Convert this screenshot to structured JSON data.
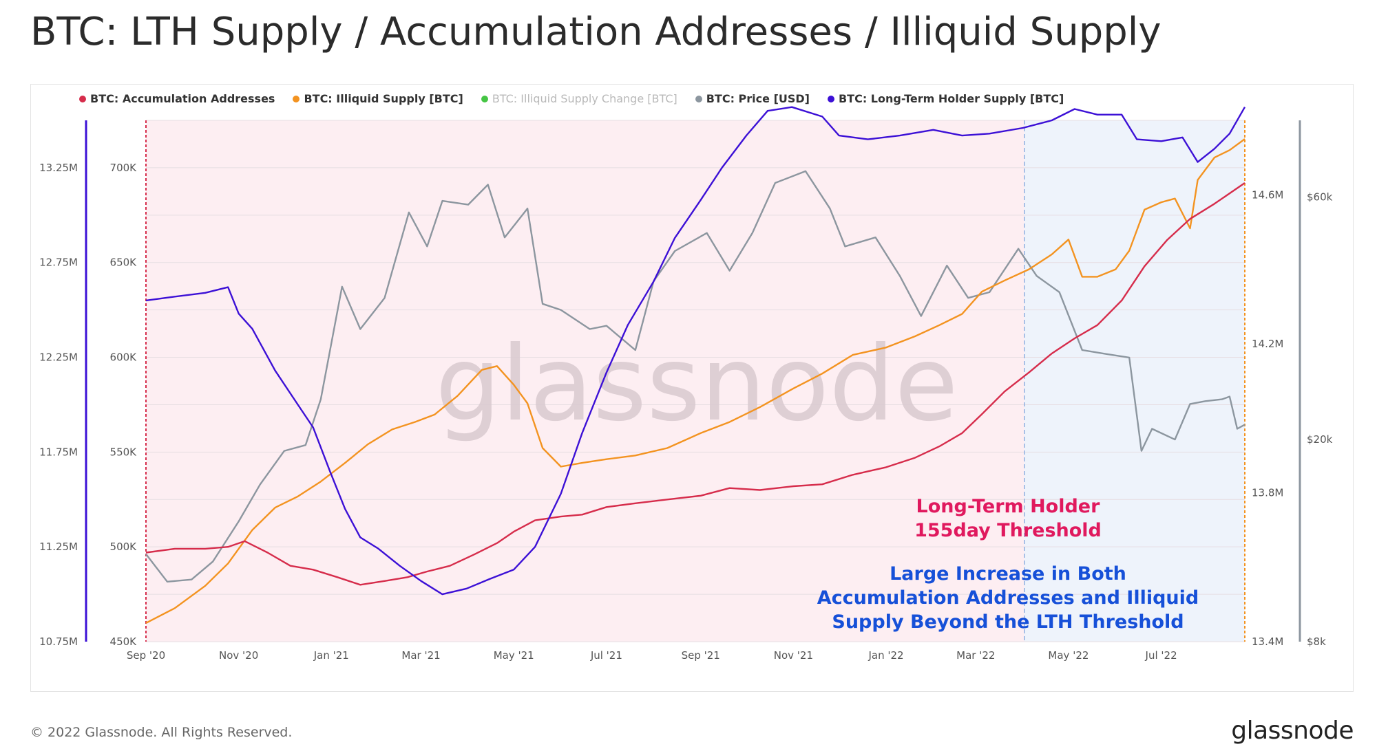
{
  "header": {
    "title": "BTC: LTH Supply / Accumulation Addresses / Illiquid Supply"
  },
  "legend": [
    {
      "label": "BTC: Accumulation Addresses",
      "color": "#d62c4b",
      "muted": false
    },
    {
      "label": "BTC: Illiquid Supply [BTC]",
      "color": "#f39320",
      "muted": false
    },
    {
      "label": "BTC: Illiquid Supply Change [BTC]",
      "color": "#45c544",
      "muted": true
    },
    {
      "label": "BTC: Price [USD]",
      "color": "#8c969f",
      "muted": false
    },
    {
      "label": "BTC: Long-Term Holder Supply [BTC]",
      "color": "#3c10d6",
      "muted": false
    }
  ],
  "footer": {
    "copyright": "© 2022 Glassnode. All Rights Reserved.",
    "logo": "glassnode"
  },
  "watermark": "glassnode",
  "chart_data": {
    "type": "line",
    "x_range": [
      "2020-09-01",
      "2022-08-25"
    ],
    "x_ticks": [
      {
        "date": "2020-09-01",
        "label": "Sep '20"
      },
      {
        "date": "2020-11-01",
        "label": "Nov '20"
      },
      {
        "date": "2021-01-01",
        "label": "Jan '21"
      },
      {
        "date": "2021-03-01",
        "label": "Mar '21"
      },
      {
        "date": "2021-05-01",
        "label": "May '21"
      },
      {
        "date": "2021-07-01",
        "label": "Jul '21"
      },
      {
        "date": "2021-09-01",
        "label": "Sep '21"
      },
      {
        "date": "2021-11-01",
        "label": "Nov '21"
      },
      {
        "date": "2022-01-01",
        "label": "Jan '22"
      },
      {
        "date": "2022-03-01",
        "label": "Mar '22"
      },
      {
        "date": "2022-05-01",
        "label": "May '22"
      },
      {
        "date": "2022-07-01",
        "label": "Jul '22"
      }
    ],
    "axes": {
      "lth": {
        "ylim": [
          10750000,
          13500000
        ],
        "ticks": [
          10750000,
          11250000,
          11750000,
          12250000,
          12750000,
          13250000
        ],
        "labels": [
          "10.75M",
          "11.25M",
          "11.75M",
          "12.25M",
          "12.75M",
          "13.25M"
        ]
      },
      "acc": {
        "ylim": [
          450000,
          725000
        ],
        "ticks": [
          450000,
          500000,
          550000,
          600000,
          650000,
          700000
        ],
        "labels": [
          "450K",
          "500K",
          "550K",
          "600K",
          "650K",
          "700K"
        ]
      },
      "illiquid": {
        "ylim": [
          13400000,
          14800000
        ],
        "ticks": [
          13400000,
          13800000,
          14200000,
          14600000
        ],
        "labels": [
          "13.4M",
          "13.8M",
          "14.2M",
          "14.6M"
        ]
      },
      "price": {
        "scale": "log",
        "ylim": [
          8000,
          85000
        ],
        "ticks": [
          8000,
          20000,
          60000
        ],
        "labels": [
          "$8k",
          "$20k",
          "$60k"
        ]
      }
    },
    "regions": [
      {
        "name": "pre-threshold",
        "from": "2020-09-01",
        "to": "2022-04-02",
        "color": "#fdeef2"
      },
      {
        "name": "beyond-lth-threshold",
        "from": "2022-04-02",
        "to": "2022-08-25",
        "color": "#eef3fb"
      }
    ],
    "threshold_date": "2022-04-02",
    "annotations": [
      {
        "lines": [
          "Long-Term Holder",
          "155day Threshold"
        ],
        "color": "#e0195e"
      },
      {
        "lines": [
          "Large Increase in Both",
          "Accumulation Addresses and Illiquid",
          "Supply Beyond the LTH Threshold"
        ],
        "color": "#1650d8"
      }
    ],
    "series": [
      {
        "name": "BTC: Accumulation Addresses",
        "axis": "acc",
        "color": "#d62c4b",
        "points": [
          [
            "2020-09-01",
            497000
          ],
          [
            "2020-09-20",
            499000
          ],
          [
            "2020-10-10",
            499000
          ],
          [
            "2020-10-25",
            500000
          ],
          [
            "2020-11-05",
            503000
          ],
          [
            "2020-11-20",
            497000
          ],
          [
            "2020-12-05",
            490000
          ],
          [
            "2020-12-20",
            488000
          ],
          [
            "2021-01-05",
            484000
          ],
          [
            "2021-01-20",
            480000
          ],
          [
            "2021-02-05",
            482000
          ],
          [
            "2021-02-20",
            484000
          ],
          [
            "2021-03-05",
            487000
          ],
          [
            "2021-03-20",
            490000
          ],
          [
            "2021-04-05",
            496000
          ],
          [
            "2021-04-20",
            502000
          ],
          [
            "2021-05-01",
            508000
          ],
          [
            "2021-05-15",
            514000
          ],
          [
            "2021-06-01",
            516000
          ],
          [
            "2021-06-15",
            517000
          ],
          [
            "2021-07-01",
            521000
          ],
          [
            "2021-07-20",
            523000
          ],
          [
            "2021-08-10",
            525000
          ],
          [
            "2021-09-01",
            527000
          ],
          [
            "2021-09-20",
            531000
          ],
          [
            "2021-10-10",
            530000
          ],
          [
            "2021-11-01",
            532000
          ],
          [
            "2021-11-20",
            533000
          ],
          [
            "2021-12-10",
            538000
          ],
          [
            "2022-01-01",
            542000
          ],
          [
            "2022-01-20",
            547000
          ],
          [
            "2022-02-05",
            553000
          ],
          [
            "2022-02-20",
            560000
          ],
          [
            "2022-03-05",
            570000
          ],
          [
            "2022-03-20",
            582000
          ],
          [
            "2022-04-05",
            592000
          ],
          [
            "2022-04-20",
            602000
          ],
          [
            "2022-05-05",
            610000
          ],
          [
            "2022-05-20",
            617000
          ],
          [
            "2022-06-05",
            630000
          ],
          [
            "2022-06-20",
            648000
          ],
          [
            "2022-07-05",
            662000
          ],
          [
            "2022-07-20",
            673000
          ],
          [
            "2022-08-05",
            681000
          ],
          [
            "2022-08-25",
            692000
          ]
        ]
      },
      {
        "name": "BTC: Illiquid Supply [BTC]",
        "axis": "illiquid",
        "color": "#f39320",
        "points": [
          [
            "2020-09-01",
            13450000
          ],
          [
            "2020-09-20",
            13490000
          ],
          [
            "2020-10-10",
            13550000
          ],
          [
            "2020-10-25",
            13610000
          ],
          [
            "2020-11-10",
            13700000
          ],
          [
            "2020-11-25",
            13760000
          ],
          [
            "2020-12-10",
            13790000
          ],
          [
            "2020-12-25",
            13830000
          ],
          [
            "2021-01-10",
            13880000
          ],
          [
            "2021-01-25",
            13930000
          ],
          [
            "2021-02-10",
            13970000
          ],
          [
            "2021-02-25",
            13990000
          ],
          [
            "2021-03-10",
            14010000
          ],
          [
            "2021-03-25",
            14060000
          ],
          [
            "2021-04-10",
            14130000
          ],
          [
            "2021-04-20",
            14140000
          ],
          [
            "2021-05-01",
            14090000
          ],
          [
            "2021-05-10",
            14040000
          ],
          [
            "2021-05-20",
            13920000
          ],
          [
            "2021-06-01",
            13870000
          ],
          [
            "2021-06-15",
            13880000
          ],
          [
            "2021-07-01",
            13890000
          ],
          [
            "2021-07-20",
            13900000
          ],
          [
            "2021-08-10",
            13920000
          ],
          [
            "2021-09-01",
            13960000
          ],
          [
            "2021-09-20",
            13990000
          ],
          [
            "2021-10-10",
            14030000
          ],
          [
            "2021-11-01",
            14080000
          ],
          [
            "2021-11-20",
            14120000
          ],
          [
            "2021-12-10",
            14170000
          ],
          [
            "2022-01-01",
            14190000
          ],
          [
            "2022-01-20",
            14220000
          ],
          [
            "2022-02-05",
            14250000
          ],
          [
            "2022-02-20",
            14280000
          ],
          [
            "2022-03-05",
            14340000
          ],
          [
            "2022-03-20",
            14370000
          ],
          [
            "2022-04-05",
            14400000
          ],
          [
            "2022-04-20",
            14440000
          ],
          [
            "2022-05-01",
            14480000
          ],
          [
            "2022-05-10",
            14380000
          ],
          [
            "2022-05-20",
            14380000
          ],
          [
            "2022-06-01",
            14400000
          ],
          [
            "2022-06-10",
            14450000
          ],
          [
            "2022-06-20",
            14560000
          ],
          [
            "2022-07-01",
            14580000
          ],
          [
            "2022-07-10",
            14590000
          ],
          [
            "2022-07-20",
            14510000
          ],
          [
            "2022-07-25",
            14640000
          ],
          [
            "2022-08-05",
            14700000
          ],
          [
            "2022-08-15",
            14720000
          ],
          [
            "2022-08-25",
            14750000
          ]
        ]
      },
      {
        "name": "BTC: Price [USD]",
        "axis": "price",
        "color": "#8c969f",
        "points": [
          [
            "2020-09-01",
            11900
          ],
          [
            "2020-09-15",
            10500
          ],
          [
            "2020-10-01",
            10600
          ],
          [
            "2020-10-15",
            11500
          ],
          [
            "2020-11-01",
            13800
          ],
          [
            "2020-11-15",
            16300
          ],
          [
            "2020-12-01",
            19000
          ],
          [
            "2020-12-15",
            19500
          ],
          [
            "2020-12-25",
            24000
          ],
          [
            "2021-01-08",
            40000
          ],
          [
            "2021-01-20",
            33000
          ],
          [
            "2021-02-05",
            38000
          ],
          [
            "2021-02-21",
            56000
          ],
          [
            "2021-03-05",
            48000
          ],
          [
            "2021-03-15",
            59000
          ],
          [
            "2021-04-01",
            58000
          ],
          [
            "2021-04-14",
            63500
          ],
          [
            "2021-04-25",
            50000
          ],
          [
            "2021-05-10",
            57000
          ],
          [
            "2021-05-20",
            37000
          ],
          [
            "2021-06-01",
            36000
          ],
          [
            "2021-06-20",
            33000
          ],
          [
            "2021-07-01",
            33500
          ],
          [
            "2021-07-20",
            30000
          ],
          [
            "2021-08-01",
            41000
          ],
          [
            "2021-08-15",
            47000
          ],
          [
            "2021-09-05",
            51000
          ],
          [
            "2021-09-20",
            43000
          ],
          [
            "2021-10-05",
            51000
          ],
          [
            "2021-10-20",
            64000
          ],
          [
            "2021-11-09",
            67500
          ],
          [
            "2021-11-25",
            57000
          ],
          [
            "2021-12-05",
            48000
          ],
          [
            "2021-12-25",
            50000
          ],
          [
            "2022-01-10",
            42000
          ],
          [
            "2022-01-24",
            35000
          ],
          [
            "2022-02-10",
            44000
          ],
          [
            "2022-02-24",
            38000
          ],
          [
            "2022-03-10",
            39000
          ],
          [
            "2022-03-29",
            47500
          ],
          [
            "2022-04-10",
            42000
          ],
          [
            "2022-04-25",
            39000
          ],
          [
            "2022-05-10",
            30000
          ],
          [
            "2022-05-25",
            29500
          ],
          [
            "2022-06-10",
            29000
          ],
          [
            "2022-06-18",
            19000
          ],
          [
            "2022-06-25",
            21000
          ],
          [
            "2022-07-10",
            20000
          ],
          [
            "2022-07-20",
            23500
          ],
          [
            "2022-07-30",
            23800
          ],
          [
            "2022-08-10",
            24000
          ],
          [
            "2022-08-15",
            24300
          ],
          [
            "2022-08-20",
            21000
          ],
          [
            "2022-08-25",
            21400
          ]
        ]
      },
      {
        "name": "BTC: Long-Term Holder Supply [BTC]",
        "axis": "lth",
        "color": "#3c10d6",
        "points": [
          [
            "2020-09-01",
            12550000
          ],
          [
            "2020-09-20",
            12570000
          ],
          [
            "2020-10-10",
            12590000
          ],
          [
            "2020-10-25",
            12620000
          ],
          [
            "2020-11-01",
            12480000
          ],
          [
            "2020-11-10",
            12400000
          ],
          [
            "2020-11-25",
            12180000
          ],
          [
            "2020-12-10",
            12000000
          ],
          [
            "2020-12-20",
            11880000
          ],
          [
            "2020-12-31",
            11650000
          ],
          [
            "2021-01-10",
            11450000
          ],
          [
            "2021-01-20",
            11300000
          ],
          [
            "2021-02-01",
            11240000
          ],
          [
            "2021-02-15",
            11150000
          ],
          [
            "2021-03-01",
            11070000
          ],
          [
            "2021-03-15",
            11000000
          ],
          [
            "2021-03-31",
            11030000
          ],
          [
            "2021-04-15",
            11080000
          ],
          [
            "2021-05-01",
            11130000
          ],
          [
            "2021-05-15",
            11250000
          ],
          [
            "2021-06-01",
            11530000
          ],
          [
            "2021-06-15",
            11850000
          ],
          [
            "2021-07-01",
            12170000
          ],
          [
            "2021-07-15",
            12420000
          ],
          [
            "2021-08-01",
            12650000
          ],
          [
            "2021-08-15",
            12880000
          ],
          [
            "2021-09-01",
            13080000
          ],
          [
            "2021-09-15",
            13250000
          ],
          [
            "2021-10-01",
            13420000
          ],
          [
            "2021-10-15",
            13550000
          ],
          [
            "2021-10-31",
            13570000
          ],
          [
            "2021-11-20",
            13520000
          ],
          [
            "2021-12-01",
            13420000
          ],
          [
            "2021-12-20",
            13400000
          ],
          [
            "2022-01-10",
            13420000
          ],
          [
            "2022-02-01",
            13450000
          ],
          [
            "2022-02-20",
            13420000
          ],
          [
            "2022-03-10",
            13430000
          ],
          [
            "2022-04-01",
            13460000
          ],
          [
            "2022-04-20",
            13500000
          ],
          [
            "2022-05-05",
            13560000
          ],
          [
            "2022-05-20",
            13530000
          ],
          [
            "2022-06-05",
            13530000
          ],
          [
            "2022-06-15",
            13400000
          ],
          [
            "2022-07-01",
            13390000
          ],
          [
            "2022-07-15",
            13410000
          ],
          [
            "2022-07-25",
            13280000
          ],
          [
            "2022-08-05",
            13350000
          ],
          [
            "2022-08-15",
            13430000
          ],
          [
            "2022-08-25",
            13570000
          ]
        ]
      }
    ]
  }
}
